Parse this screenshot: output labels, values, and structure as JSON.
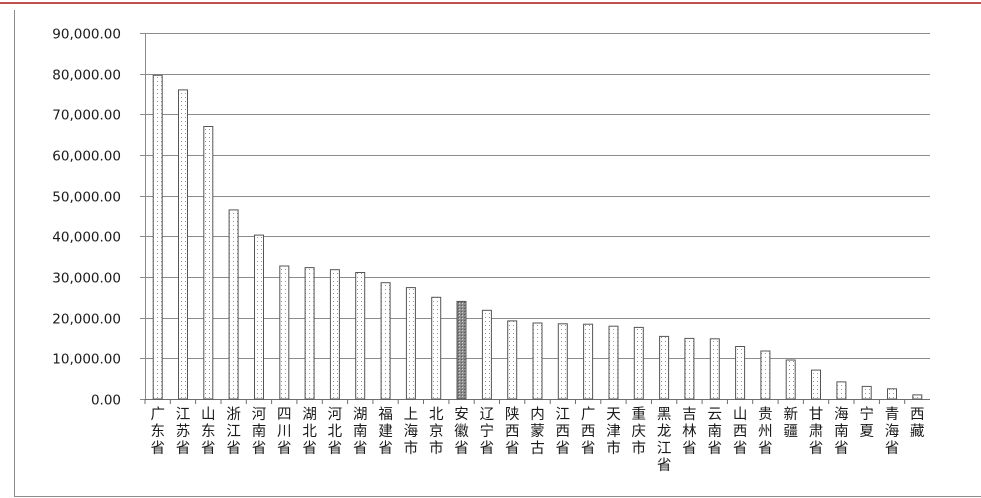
{
  "chart_data": {
    "type": "bar",
    "title": "",
    "xlabel": "",
    "ylabel": "",
    "ylim": [
      0,
      90000
    ],
    "yticks": [
      0,
      10000,
      20000,
      30000,
      40000,
      50000,
      60000,
      70000,
      80000,
      90000
    ],
    "ytick_labels": [
      "0.00",
      "10,000.00",
      "20,000.00",
      "30,000.00",
      "40,000.00",
      "50,000.00",
      "60,000.00",
      "70,000.00",
      "80,000.00",
      "90,000.00"
    ],
    "grid": true,
    "legend": "none",
    "highlight_category": "安徽省",
    "categories": [
      "广东省",
      "江苏省",
      "山东省",
      "浙江省",
      "河南省",
      "四川省",
      "湖北省",
      "河北省",
      "湖南省",
      "福建省",
      "上海市",
      "北京市",
      "安徽省",
      "辽宁省",
      "陕西省",
      "内蒙古",
      "江西省",
      "广西省",
      "天津市",
      "重庆市",
      "黑龙江省",
      "吉林省",
      "云南省",
      "山西省",
      "贵州省",
      "新疆",
      "甘肃省",
      "海南省",
      "宁夏",
      "青海省",
      "西藏"
    ],
    "values": [
      79600,
      76000,
      67000,
      46500,
      40300,
      32700,
      32300,
      31800,
      31100,
      28600,
      27400,
      25000,
      24000,
      21800,
      19200,
      18700,
      18500,
      18400,
      17900,
      17600,
      15400,
      14900,
      14800,
      12900,
      11800,
      9600,
      7100,
      4200,
      3100,
      2500,
      1000
    ]
  },
  "colors": {
    "bar_fill": "#ffffff",
    "bar_dots": "#9a9a9a",
    "bar_outline": "#555555",
    "highlight_fill": "#8c8c8c",
    "grid": "#8c8c8c",
    "accent_line": "#c0504d"
  }
}
